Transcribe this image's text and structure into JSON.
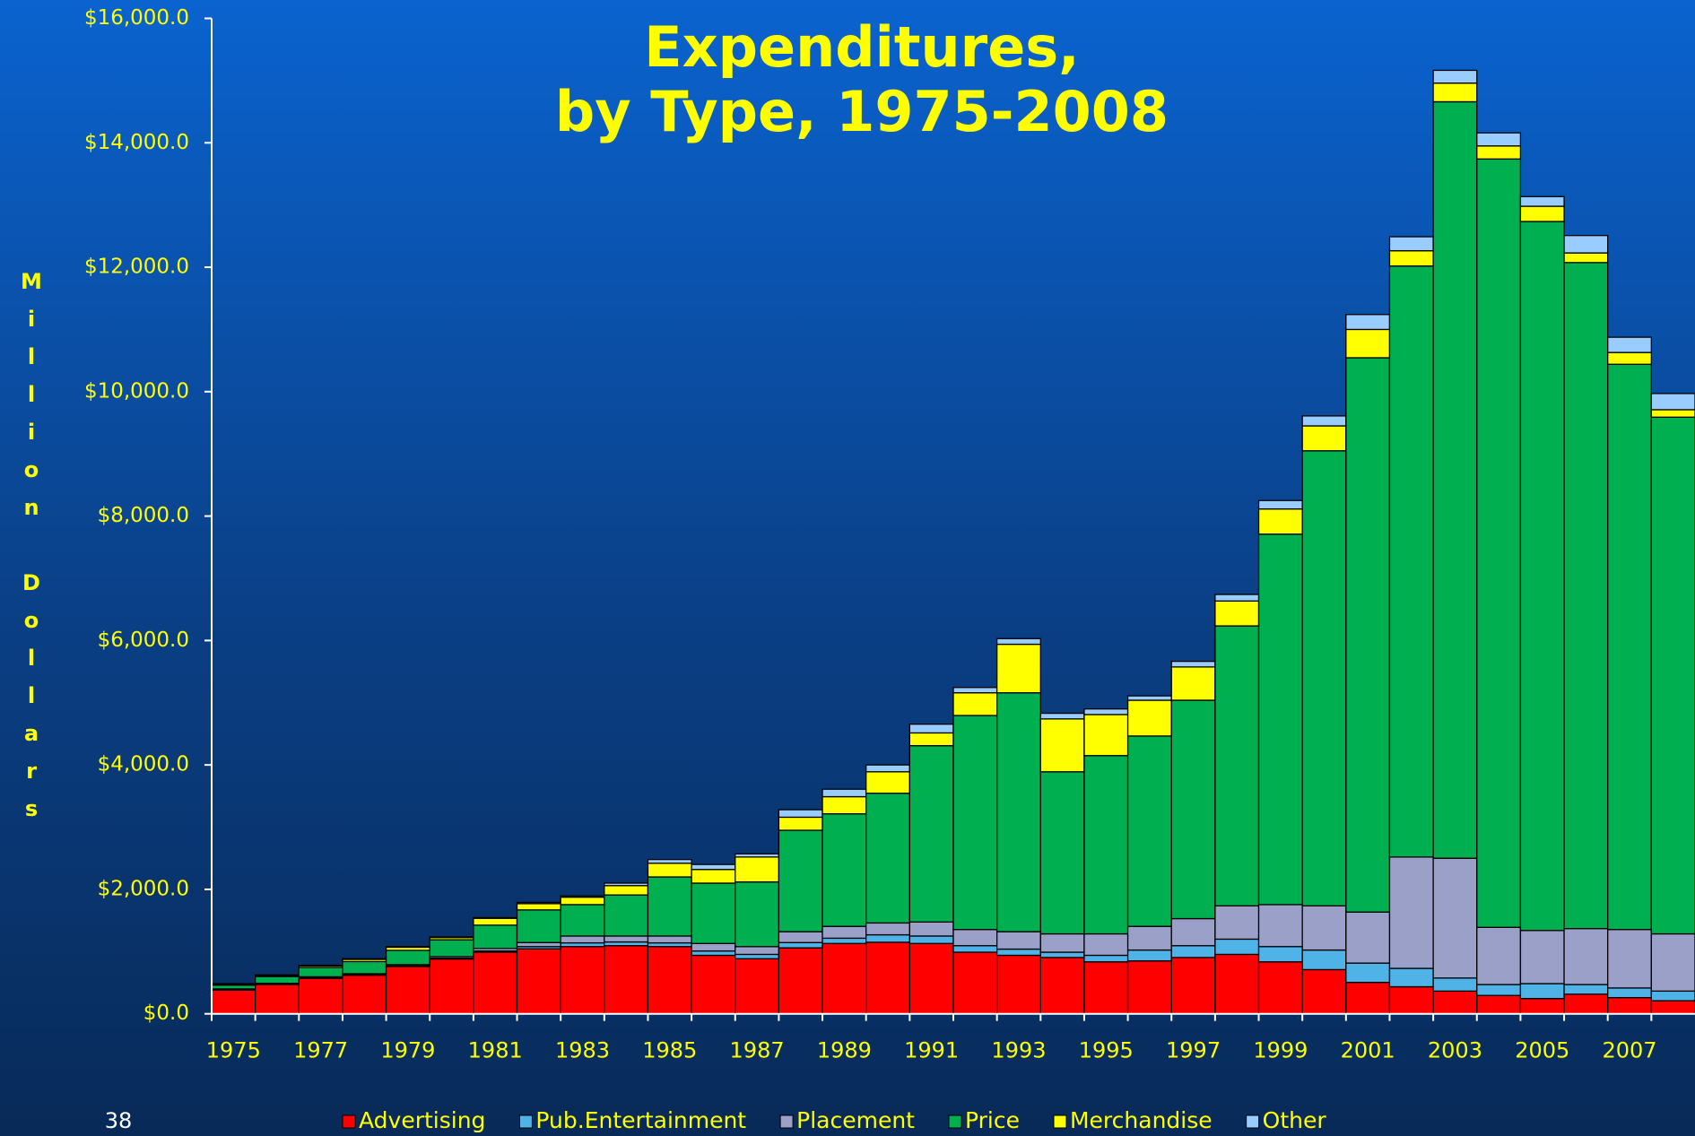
{
  "chart_data": {
    "type": "stacked_bar",
    "title_lines": [
      "Expenditures,",
      "by Type, 1975-2008"
    ],
    "y_label": "Million Dollars",
    "page_number": "38",
    "categories": [
      "1975",
      null,
      "1977",
      null,
      "1979",
      null,
      "1981",
      null,
      "1983",
      null,
      "1985",
      null,
      "1987",
      null,
      "1989",
      null,
      "1991",
      null,
      "1993",
      null,
      "1995",
      null,
      "1997",
      null,
      "1999",
      null,
      "2001",
      null,
      "2003",
      null,
      "2005",
      null,
      "2007",
      null
    ],
    "series": [
      {
        "name": "Advertising",
        "color": "#ff0000",
        "values": [
          380,
          470,
          570,
          620,
          760,
          880,
          990,
          1045,
          1080,
          1095,
          1080,
          940,
          885,
          1060,
          1130,
          1150,
          1130,
          990,
          940,
          905,
          835,
          850,
          905,
          955,
          835,
          710,
          505,
          435,
          365,
          295,
          245,
          315,
          260,
          210
        ]
      },
      {
        "name": "Pub.Entertainment",
        "color": "#4fb3e8",
        "values": [
          10,
          10,
          10,
          10,
          10,
          15,
          20,
          35,
          60,
          60,
          60,
          70,
          70,
          85,
          85,
          120,
          120,
          105,
          100,
          85,
          105,
          175,
          190,
          245,
          245,
          315,
          310,
          295,
          210,
          175,
          240,
          155,
          155,
          155
        ]
      },
      {
        "name": "Placement",
        "color": "#9aa0c8",
        "values": [
          10,
          10,
          15,
          15,
          20,
          25,
          40,
          65,
          110,
          95,
          110,
          120,
          125,
          175,
          190,
          190,
          225,
          260,
          280,
          295,
          345,
          380,
          435,
          535,
          675,
          710,
          820,
          1790,
          1925,
          920,
          855,
          900,
          940,
          920
        ]
      },
      {
        "name": "Price",
        "color": "#00b050",
        "values": [
          60,
          110,
          150,
          195,
          230,
          270,
          375,
          525,
          505,
          660,
          950,
          970,
          1040,
          1630,
          1810,
          2085,
          2835,
          3440,
          3840,
          2605,
          2865,
          3060,
          3510,
          4500,
          5955,
          7315,
          8910,
          9500,
          12160,
          12350,
          11395,
          10705,
          9085,
          8305
        ]
      },
      {
        "name": "Merchandise",
        "color": "#ffff00",
        "values": [
          15,
          15,
          25,
          35,
          50,
          35,
          110,
          100,
          120,
          150,
          220,
          220,
          400,
          210,
          275,
          345,
          205,
          365,
          780,
          850,
          660,
          575,
          535,
          400,
          405,
          400,
          455,
          245,
          300,
          210,
          245,
          155,
          190,
          120
        ]
      },
      {
        "name": "Other",
        "color": "#99ccff",
        "values": [
          10,
          10,
          10,
          10,
          10,
          10,
          10,
          20,
          20,
          40,
          60,
          80,
          50,
          120,
          120,
          110,
          140,
          85,
          90,
          90,
          90,
          70,
          90,
          105,
          135,
          160,
          240,
          225,
          205,
          210,
          155,
          280,
          245,
          260
        ]
      }
    ],
    "ylim": [
      0,
      16000
    ],
    "yticks": [
      {
        "value": 0,
        "label": "$0.0"
      },
      {
        "value": 2000,
        "label": "$2,000.0"
      },
      {
        "value": 4000,
        "label": "$4,000.0"
      },
      {
        "value": 6000,
        "label": "$6,000.0"
      },
      {
        "value": 8000,
        "label": "$8,000.0"
      },
      {
        "value": 10000,
        "label": "$10,000.0"
      },
      {
        "value": 12000,
        "label": "$12,000.0"
      },
      {
        "value": 14000,
        "label": "$14,000.0"
      },
      {
        "value": 16000,
        "label": "$16,000.0"
      }
    ],
    "legend": "bottom"
  }
}
